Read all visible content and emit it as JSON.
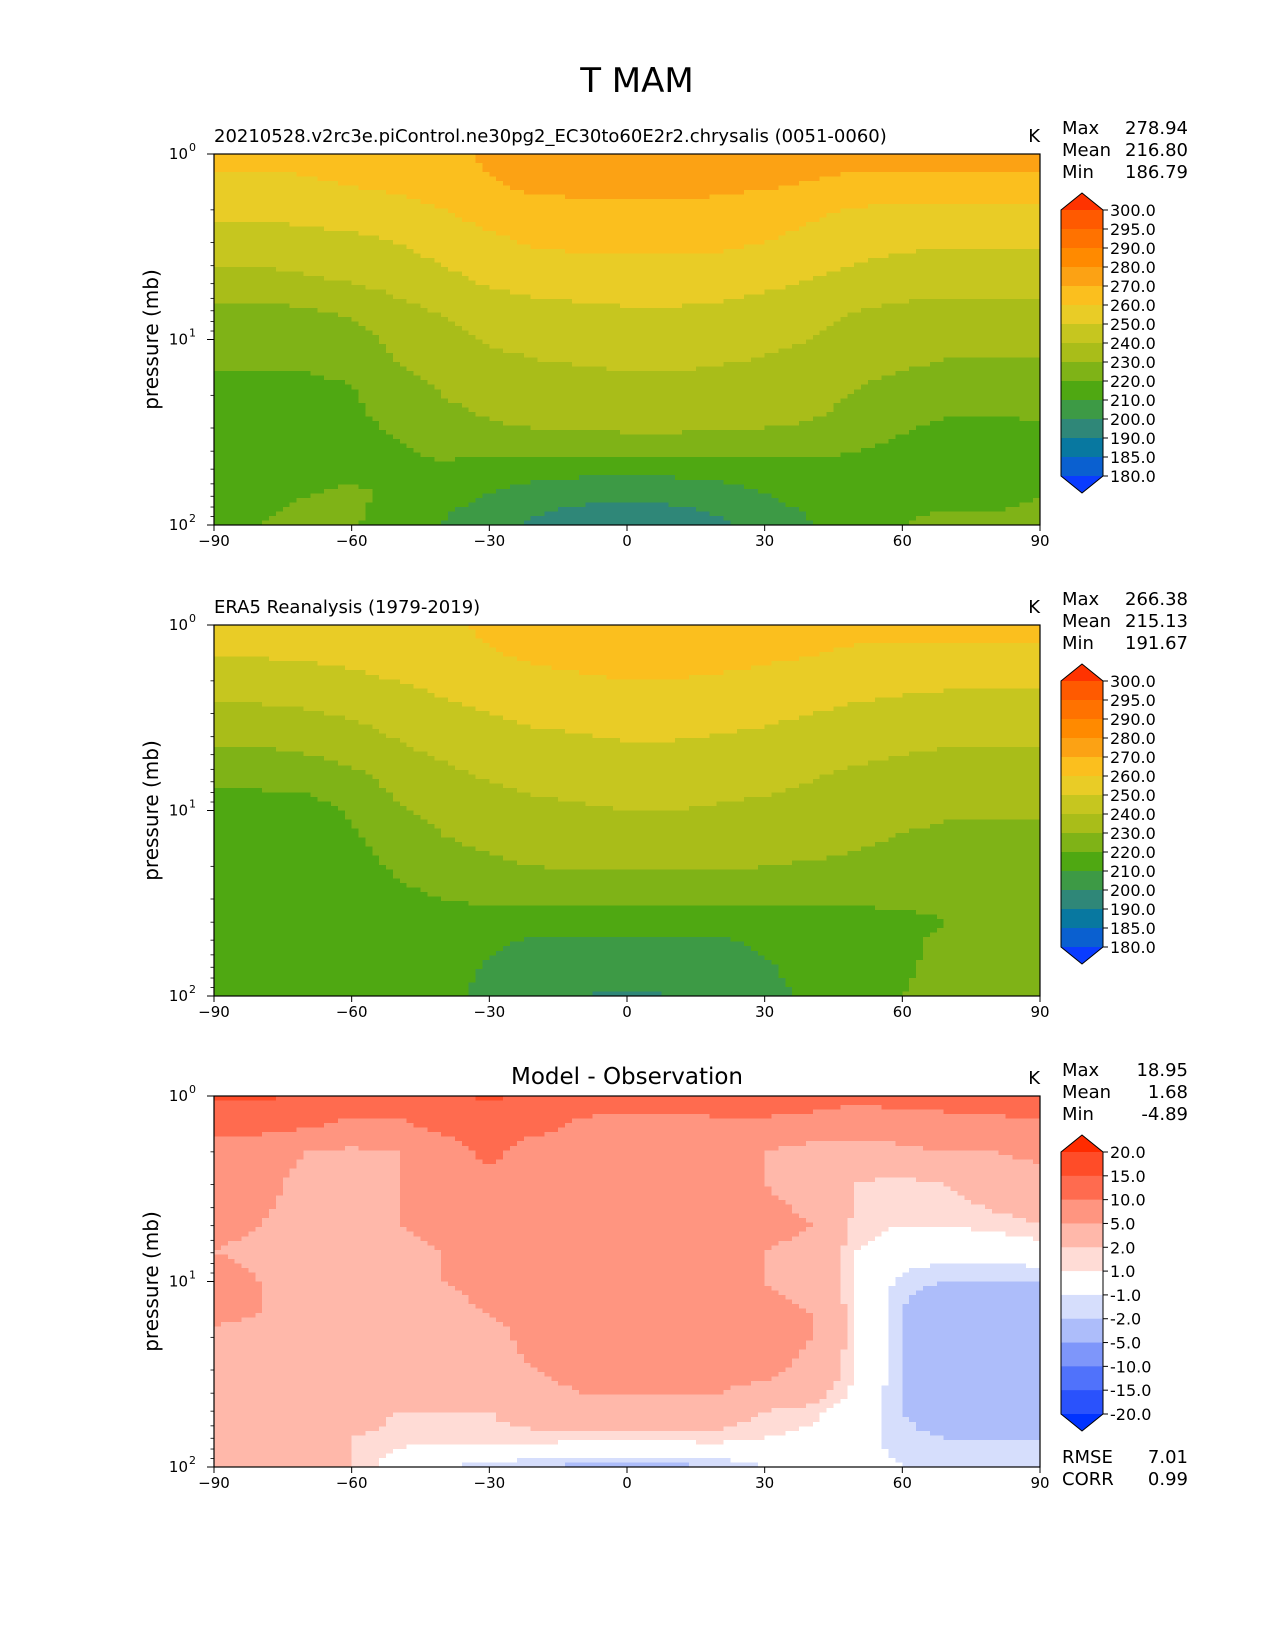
{
  "suptitle": "T MAM",
  "chart_data": [
    {
      "type": "heatmap",
      "title_left": "20210528.v2rc3e.piControl.ne30pg2_EC30to60E2r2.chrysalis (0051-0060)",
      "title_center": "",
      "units": "K",
      "ylabel": "pressure (mb)",
      "xlim": [
        -90,
        90
      ],
      "ylim": [
        100,
        1
      ],
      "yscale": "log",
      "x_ticks": [
        "−90",
        "−60",
        "−30",
        "0",
        "30",
        "60",
        "90"
      ],
      "y_ticks": [
        {
          "base": "10",
          "exp": "0"
        },
        {
          "base": "10",
          "exp": "1"
        },
        {
          "base": "10",
          "exp": "2"
        }
      ],
      "stats": [
        {
          "label": "Max",
          "value": "278.94"
        },
        {
          "label": "Mean",
          "value": "216.80"
        },
        {
          "label": "Min",
          "value": "186.79"
        }
      ],
      "colorbar": {
        "labels": [
          "300.0",
          "295.0",
          "290.0",
          "280.0",
          "270.0",
          "260.0",
          "250.0",
          "240.0",
          "230.0",
          "220.0",
          "210.0",
          "200.0",
          "190.0",
          "185.0",
          "180.0"
        ],
        "colors": [
          "#ff3300",
          "#ff5a00",
          "#ff7200",
          "#ff8a00",
          "#fca214",
          "#fbbf1e",
          "#e9cc26",
          "#c6c61f",
          "#a9bd19",
          "#7fb317",
          "#4fa812",
          "#3d9a45",
          "#2f8778",
          "#0878a0",
          "#0a60d0",
          "#0a3cff"
        ]
      },
      "x": [
        -90,
        -80,
        -70,
        -60,
        -50,
        -40,
        -30,
        -20,
        -10,
        0,
        10,
        20,
        30,
        40,
        50,
        60,
        70,
        80,
        90
      ],
      "p": [
        1,
        1.5,
        2,
        3,
        5,
        7,
        10,
        15,
        20,
        30,
        40,
        50,
        70,
        100
      ],
      "values": [
        [
          262,
          262,
          262,
          263,
          264,
          267,
          272,
          274,
          275,
          275,
          275,
          275,
          274,
          274,
          274,
          274,
          274,
          274,
          274
        ],
        [
          258,
          258,
          259,
          260,
          262,
          265,
          269,
          272,
          273,
          273,
          273,
          272,
          271,
          269,
          267,
          266,
          266,
          266,
          266
        ],
        [
          252,
          252,
          253,
          254,
          256,
          260,
          264,
          266,
          267,
          268,
          268,
          267,
          265,
          262,
          259,
          258,
          258,
          258,
          258
        ],
        [
          246,
          246,
          247,
          248,
          250,
          254,
          258,
          261,
          262,
          262,
          262,
          262,
          260,
          257,
          254,
          252,
          251,
          251,
          251
        ],
        [
          236,
          236,
          238,
          240,
          243,
          247,
          251,
          253,
          254,
          255,
          255,
          254,
          252,
          249,
          246,
          244,
          243,
          243,
          243
        ],
        [
          227,
          227,
          229,
          232,
          237,
          241,
          245,
          247,
          248,
          249,
          249,
          248,
          246,
          243,
          240,
          238,
          237,
          237,
          237
        ],
        [
          222,
          222,
          223,
          225,
          233,
          237,
          241,
          243,
          244,
          245,
          245,
          244,
          242,
          240,
          236,
          234,
          233,
          233,
          233
        ],
        [
          220,
          220,
          220,
          221,
          229,
          233,
          236,
          238,
          239,
          240,
          240,
          239,
          238,
          236,
          232,
          230,
          228,
          228,
          228
        ],
        [
          219,
          219,
          219,
          219,
          225,
          230,
          233,
          235,
          236,
          237,
          237,
          236,
          235,
          234,
          229,
          226,
          224,
          224,
          225
        ],
        [
          218,
          218,
          218,
          218,
          221,
          227,
          229,
          230,
          231,
          232,
          232,
          231,
          230,
          229,
          226,
          221,
          218,
          217,
          219
        ],
        [
          217,
          217,
          218,
          218,
          219,
          222,
          222,
          222,
          222,
          222,
          222,
          222,
          221,
          221,
          220,
          217,
          216,
          216,
          217
        ],
        [
          218,
          218,
          218,
          219,
          219,
          218,
          216,
          214,
          213,
          213,
          213,
          214,
          216,
          218,
          219,
          218,
          217,
          217,
          218
        ],
        [
          219,
          219,
          220,
          221,
          219,
          214,
          209,
          205,
          203,
          202,
          203,
          205,
          209,
          214,
          218,
          219,
          219,
          219,
          220
        ],
        [
          220,
          220,
          221,
          221,
          216,
          209,
          203,
          198,
          193,
          189,
          193,
          198,
          203,
          209,
          216,
          220,
          221,
          221,
          221
        ]
      ]
    },
    {
      "type": "heatmap",
      "title_left": "ERA5 Reanalysis (1979-2019)",
      "title_center": "",
      "units": "K",
      "ylabel": "pressure (mb)",
      "xlim": [
        -90,
        90
      ],
      "ylim": [
        100,
        1
      ],
      "yscale": "log",
      "x_ticks": [
        "−90",
        "−60",
        "−30",
        "0",
        "30",
        "60",
        "90"
      ],
      "y_ticks": [
        {
          "base": "10",
          "exp": "0"
        },
        {
          "base": "10",
          "exp": "1"
        },
        {
          "base": "10",
          "exp": "2"
        }
      ],
      "stats": [
        {
          "label": "Max",
          "value": "266.38"
        },
        {
          "label": "Mean",
          "value": "215.13"
        },
        {
          "label": "Min",
          "value": "191.67"
        }
      ],
      "colorbar": {
        "labels": [
          "300.0",
          "295.0",
          "290.0",
          "280.0",
          "270.0",
          "260.0",
          "250.0",
          "240.0",
          "230.0",
          "220.0",
          "210.0",
          "200.0",
          "190.0",
          "185.0",
          "180.0"
        ],
        "colors": [
          "#ff3300",
          "#ff5a00",
          "#ff7200",
          "#ff8a00",
          "#fca214",
          "#fbbf1e",
          "#e9cc26",
          "#c6c61f",
          "#a9bd19",
          "#7fb317",
          "#4fa812",
          "#3d9a45",
          "#2f8778",
          "#0878a0",
          "#0a60d0",
          "#0a3cff"
        ]
      },
      "x": [
        -90,
        -80,
        -70,
        -60,
        -50,
        -40,
        -30,
        -20,
        -10,
        0,
        10,
        20,
        30,
        40,
        50,
        60,
        70,
        80,
        90
      ],
      "p": [
        1,
        1.5,
        2,
        3,
        5,
        7,
        10,
        15,
        20,
        30,
        40,
        50,
        70,
        100
      ],
      "values": [
        [
          255,
          255,
          255,
          255,
          256,
          258,
          262,
          263,
          263,
          264,
          264,
          264,
          264,
          264,
          263,
          263,
          263,
          263,
          263
        ],
        [
          250,
          250,
          251,
          252,
          254,
          256,
          259,
          261,
          262,
          262,
          262,
          262,
          261,
          260,
          258,
          257,
          257,
          257,
          257
        ],
        [
          245,
          245,
          246,
          248,
          250,
          253,
          256,
          258,
          259,
          260,
          260,
          259,
          258,
          256,
          254,
          253,
          252,
          252,
          252
        ],
        [
          238,
          238,
          239,
          241,
          244,
          247,
          250,
          252,
          253,
          254,
          254,
          253,
          252,
          250,
          248,
          246,
          245,
          245,
          245
        ],
        [
          228,
          228,
          230,
          233,
          238,
          241,
          244,
          246,
          247,
          248,
          248,
          247,
          246,
          244,
          242,
          240,
          239,
          239,
          239
        ],
        [
          222,
          222,
          223,
          226,
          233,
          237,
          240,
          242,
          243,
          244,
          244,
          243,
          242,
          240,
          237,
          235,
          234,
          234,
          234
        ],
        [
          215,
          215,
          216,
          221,
          229,
          233,
          236,
          238,
          239,
          240,
          240,
          239,
          238,
          236,
          234,
          232,
          231,
          231,
          231
        ],
        [
          213,
          213,
          214,
          218,
          224,
          229,
          232,
          234,
          235,
          236,
          236,
          235,
          234,
          233,
          231,
          229,
          228,
          228,
          228
        ],
        [
          213,
          213,
          214,
          217,
          221,
          225,
          228,
          230,
          231,
          231,
          231,
          231,
          230,
          229,
          228,
          226,
          225,
          225,
          225
        ],
        [
          213,
          213,
          215,
          217,
          218,
          220,
          221,
          221,
          221,
          221,
          221,
          221,
          221,
          221,
          221,
          221,
          221,
          222,
          223
        ],
        [
          213,
          213,
          215,
          217,
          218,
          218,
          217,
          216,
          216,
          216,
          216,
          216,
          217,
          218,
          218,
          219,
          220,
          221,
          222
        ],
        [
          214,
          214,
          216,
          218,
          218,
          216,
          212,
          209,
          208,
          208,
          208,
          209,
          212,
          215,
          217,
          219,
          221,
          222,
          223
        ],
        [
          215,
          215,
          217,
          219,
          218,
          214,
          209,
          205,
          203,
          203,
          203,
          205,
          209,
          213,
          216,
          219,
          222,
          223,
          224
        ],
        [
          216,
          216,
          218,
          219,
          218,
          213,
          207,
          202,
          200,
          199,
          200,
          202,
          207,
          212,
          216,
          220,
          223,
          224,
          225
        ]
      ]
    },
    {
      "type": "heatmap",
      "title_left": "",
      "title_center": "Model - Observation",
      "units": "K",
      "ylabel": "pressure (mb)",
      "xlim": [
        -90,
        90
      ],
      "ylim": [
        100,
        1
      ],
      "yscale": "log",
      "x_ticks": [
        "−90",
        "−60",
        "−30",
        "0",
        "30",
        "60",
        "90"
      ],
      "y_ticks": [
        {
          "base": "10",
          "exp": "0"
        },
        {
          "base": "10",
          "exp": "1"
        },
        {
          "base": "10",
          "exp": "2"
        }
      ],
      "stats": [
        {
          "label": "Max",
          "value": "18.95"
        },
        {
          "label": "Mean",
          "value": "1.68"
        },
        {
          "label": "Min",
          "value": "-4.89"
        }
      ],
      "extra_stats": [
        {
          "label": "RMSE",
          "value": "7.01"
        },
        {
          "label": "CORR",
          "value": "0.99"
        }
      ],
      "colorbar": {
        "labels": [
          "20.0",
          "15.0",
          "10.0",
          "5.0",
          "2.0",
          "1.0",
          "-1.0",
          "-2.0",
          "-5.0",
          "-10.0",
          "-15.0",
          "-20.0"
        ],
        "colors": [
          "#ff2b00",
          "#ff4c28",
          "#ff6b4f",
          "#ff9580",
          "#ffb8aa",
          "#ffdcd6",
          "#ffffff",
          "#d6defc",
          "#adbdfa",
          "#7e96fa",
          "#5072fb",
          "#2a52fc",
          "#0033ff"
        ]
      },
      "x": [
        -90,
        -80,
        -70,
        -60,
        -50,
        -40,
        -30,
        -20,
        -10,
        0,
        10,
        20,
        30,
        40,
        50,
        60,
        70,
        80,
        90
      ],
      "p": [
        1,
        1.5,
        2,
        3,
        5,
        7,
        10,
        15,
        20,
        30,
        40,
        50,
        70,
        100
      ],
      "values": [
        [
          16,
          16,
          14,
          12,
          12,
          13,
          16,
          13,
          12,
          12,
          12,
          12,
          12,
          12,
          11,
          12,
          12,
          13,
          13
        ],
        [
          11,
          11,
          10,
          9,
          9,
          11,
          12,
          11,
          9,
          8,
          8,
          9,
          9,
          8,
          7,
          7,
          8,
          8,
          9
        ],
        [
          8,
          7,
          5,
          4,
          5,
          8,
          11,
          8,
          7,
          8,
          7,
          6,
          5,
          3,
          2.5,
          4,
          5,
          5,
          6
        ],
        [
          7,
          6,
          4,
          4,
          5,
          7,
          9,
          7,
          6,
          6,
          6,
          6,
          5,
          4,
          2,
          1.5,
          2,
          3,
          3
        ],
        [
          6,
          5,
          4,
          4,
          5,
          6,
          7,
          7,
          7,
          7,
          7,
          7,
          6,
          5,
          1.5,
          1,
          1,
          1.5,
          2
        ],
        [
          5,
          4,
          3,
          3,
          4,
          5,
          6,
          7,
          7,
          7,
          7,
          6,
          5,
          4,
          1,
          0,
          -0.5,
          -0.5,
          0
        ],
        [
          7,
          5,
          4,
          4,
          4,
          5,
          6,
          7,
          7,
          7,
          7,
          6,
          5,
          4,
          1,
          -1.5,
          -2,
          -2,
          -2
        ],
        [
          6,
          5,
          4,
          3,
          3,
          4,
          5,
          6,
          6,
          6,
          6,
          6,
          6,
          5,
          1,
          -2,
          -4,
          -4,
          -4
        ],
        [
          4,
          4,
          4,
          3,
          3,
          3,
          4,
          6,
          7,
          7,
          7,
          7,
          7,
          5,
          1,
          -2,
          -4,
          -4.5,
          -4.5
        ],
        [
          4,
          4,
          4,
          4,
          4,
          4,
          4,
          5,
          6,
          6,
          6,
          6,
          6,
          4,
          1,
          -2,
          -4,
          -4.5,
          -4.5
        ],
        [
          4,
          4,
          4,
          3,
          3,
          4,
          4,
          4,
          5,
          5,
          5,
          5,
          4,
          3,
          0.5,
          -2,
          -4,
          -4.5,
          -4.5
        ],
        [
          4,
          4,
          4,
          3,
          2,
          2,
          2,
          3,
          3,
          3,
          3,
          3,
          2,
          1.5,
          0,
          -2,
          -3.5,
          -4,
          -4
        ],
        [
          4,
          4,
          3,
          2,
          1.5,
          1.5,
          1.5,
          1.5,
          1.5,
          1.5,
          1.5,
          1.5,
          1,
          0.5,
          -0.5,
          -1.5,
          -2,
          -2,
          -2
        ],
        [
          4,
          4,
          3,
          2,
          0,
          -1,
          -1.5,
          -2,
          -2.5,
          -2.5,
          -2.5,
          -2,
          -1,
          0,
          -0.5,
          -1,
          -1.5,
          -1.5,
          -1.5
        ]
      ]
    }
  ]
}
